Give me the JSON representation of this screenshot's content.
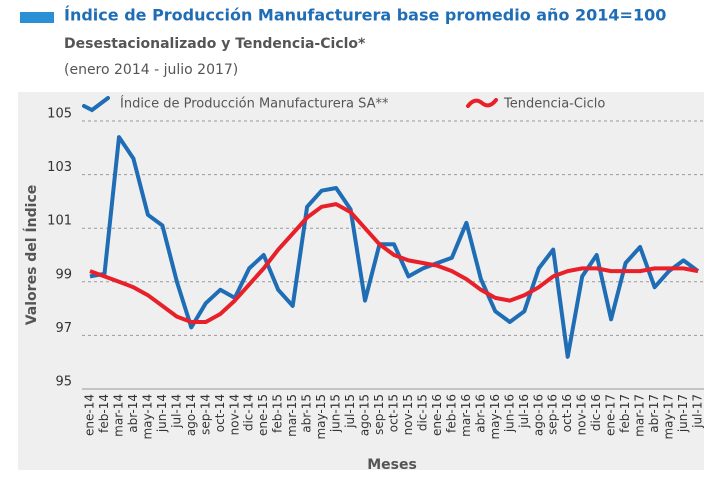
{
  "chart_data": {
    "type": "line",
    "title": "Índice de Producción Manufacturera  base promedio año 2014=100",
    "subtitle": "Desestacionalizado y Tendencia-Ciclo*",
    "period": "(enero 2014 - julio 2017)",
    "y_label": "Valores del Índice",
    "x_label": "Meses",
    "categories": [
      "ene-14",
      "feb-14",
      "mar-14",
      "abr-14",
      "may-14",
      "jun-14",
      "jul-14",
      "ago-14",
      "sep-14",
      "oct-14",
      "nov-14",
      "dic-14",
      "ene-15",
      "feb-15",
      "mar-15",
      "abr-15",
      "may-15",
      "jun-15",
      "jul-15",
      "ago-15",
      "sep-15",
      "oct-15",
      "nov-15",
      "dic-15",
      "ene-16",
      "feb-16",
      "mar-16",
      "abr-16",
      "may-16",
      "jun-16",
      "jul-16",
      "ago-16",
      "sep-16",
      "oct-16",
      "nov-16",
      "dic-16",
      "ene-17",
      "feb-17",
      "mar-17",
      "abr-17",
      "may-17",
      "jun-17",
      "jul-17"
    ],
    "series": [
      {
        "name": "Índice de Producción Manufacturera SA**",
        "color": "#1f6db5",
        "values": [
          99.2,
          99.3,
          104.4,
          103.6,
          101.5,
          101.1,
          99.0,
          97.3,
          98.2,
          98.7,
          98.4,
          99.5,
          100.0,
          98.7,
          98.1,
          101.8,
          102.4,
          102.5,
          101.7,
          98.3,
          100.4,
          100.4,
          99.2,
          99.5,
          99.7,
          99.9,
          101.2,
          99.1,
          97.9,
          97.5,
          97.9,
          99.5,
          100.2,
          96.2,
          99.2,
          100.0,
          97.6,
          99.7,
          100.3,
          98.8,
          99.4,
          99.8,
          99.4
        ]
      },
      {
        "name": "Tendencia-Ciclo",
        "color": "#e8202a",
        "values": [
          99.4,
          99.2,
          99.0,
          98.8,
          98.5,
          98.1,
          97.7,
          97.5,
          97.5,
          97.8,
          98.3,
          98.9,
          99.5,
          100.2,
          100.8,
          101.4,
          101.8,
          101.9,
          101.6,
          101.0,
          100.4,
          100.0,
          99.8,
          99.7,
          99.6,
          99.4,
          99.1,
          98.7,
          98.4,
          98.3,
          98.5,
          98.8,
          99.2,
          99.4,
          99.5,
          99.5,
          99.4,
          99.4,
          99.4,
          99.5,
          99.5,
          99.5,
          99.4
        ]
      }
    ],
    "ylim": [
      95,
      105
    ],
    "yticks": [
      95,
      97,
      99,
      101,
      103,
      105
    ],
    "grid": true
  }
}
